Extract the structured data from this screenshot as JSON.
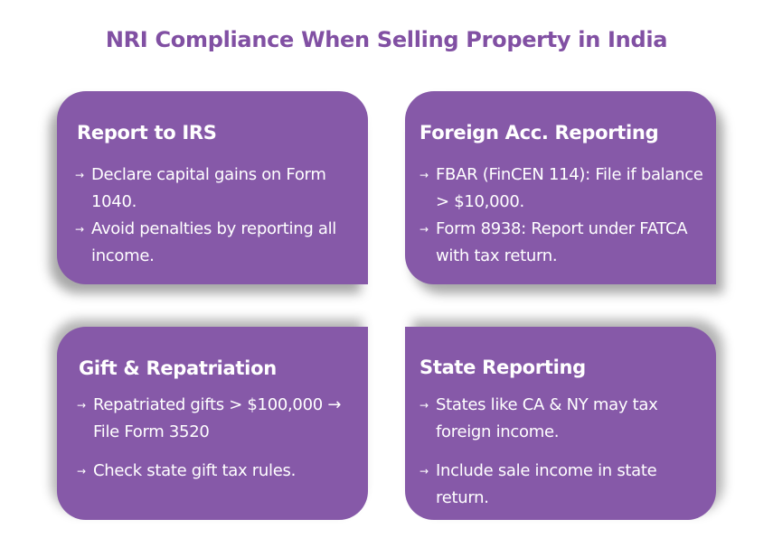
{
  "title": "NRI Compliance When Selling Property in India",
  "colors": {
    "card": "#8659a8",
    "title": "#8150a3"
  },
  "cards": [
    {
      "title": "Report to IRS",
      "items": [
        "Declare capital gains on Form 1040.",
        "Avoid penalties by reporting all income."
      ]
    },
    {
      "title": "Foreign Acc. Reporting",
      "items": [
        "FBAR (FinCEN 114): File if balance > $10,000.",
        "Form 8938: Report under FATCA with tax return."
      ]
    },
    {
      "title": "Gift & Repatriation",
      "items": [
        "Repatriated gifts > $100,000 → File Form 3520",
        "Check state gift tax rules."
      ]
    },
    {
      "title": "State Reporting",
      "items": [
        "States like CA & NY may tax foreign income.",
        "Include sale income in state return."
      ]
    }
  ]
}
